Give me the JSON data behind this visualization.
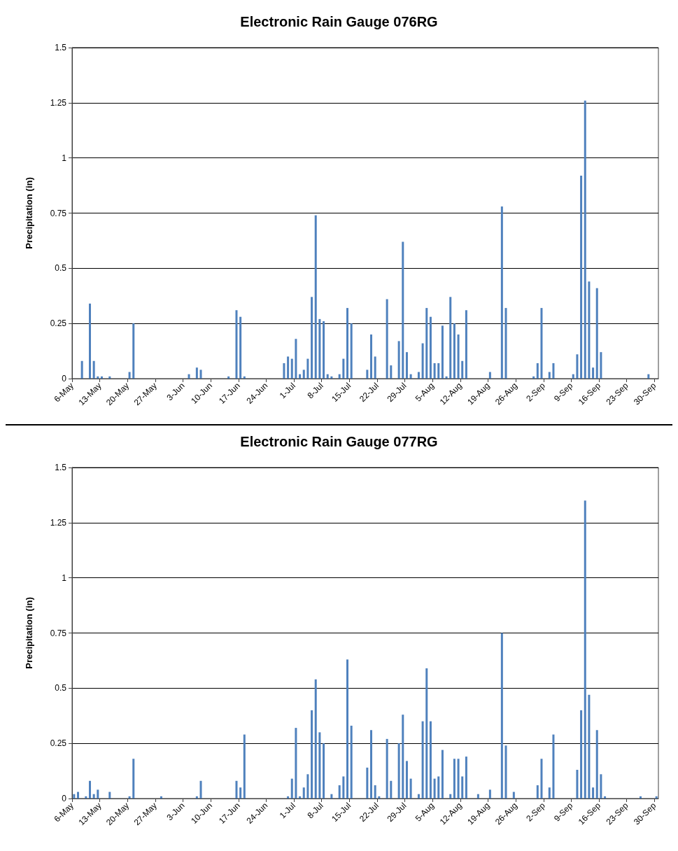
{
  "chart_data": [
    {
      "type": "bar",
      "title": "Electronic Rain Gauge 076RG",
      "ylabel": "Precipitation (in)",
      "x": [
        "--05-08",
        "--05-10",
        "--05-11",
        "--05-12",
        "--05-13",
        "--05-15",
        "--05-20",
        "--05-21",
        "--06-04",
        "--06-06",
        "--06-07",
        "--06-14",
        "--06-16",
        "--06-17",
        "--06-18",
        "--06-28",
        "--06-29",
        "--06-30",
        "--07-01",
        "--07-02",
        "--07-03",
        "--07-04",
        "--07-05",
        "--07-06",
        "--07-07",
        "--07-08",
        "--07-09",
        "--07-10",
        "--07-12",
        "--07-13",
        "--07-14",
        "--07-15",
        "--07-19",
        "--07-20",
        "--07-21",
        "--07-24",
        "--07-25",
        "--07-27",
        "--07-28",
        "--07-29",
        "--07-30",
        "--08-01",
        "--08-02",
        "--08-03",
        "--08-04",
        "--08-05",
        "--08-06",
        "--08-07",
        "--08-08",
        "--08-09",
        "--08-10",
        "--08-11",
        "--08-12",
        "--08-13",
        "--08-19",
        "--08-22",
        "--08-23",
        "--08-30",
        "--08-31",
        "--09-01",
        "--09-03",
        "--09-04",
        "--09-09",
        "--09-10",
        "--09-11",
        "--09-12",
        "--09-13",
        "--09-14",
        "--09-15",
        "--09-16",
        "--09-28"
      ],
      "series": [
        {
          "color": "#4f81bd",
          "values": [
            0.08,
            0.34,
            0.08,
            0.01,
            0.01,
            0.01,
            0.03,
            0.25,
            0.02,
            0.05,
            0.04,
            0.01,
            0.31,
            0.28,
            0.01,
            0.07,
            0.1,
            0.09,
            0.18,
            0.02,
            0.04,
            0.09,
            0.37,
            0.74,
            0.27,
            0.26,
            0.02,
            0.01,
            0.02,
            0.09,
            0.32,
            0.25,
            0.04,
            0.2,
            0.1,
            0.36,
            0.06,
            0.17,
            0.62,
            0.12,
            0.02,
            0.03,
            0.16,
            0.32,
            0.28,
            0.07,
            0.07,
            0.24,
            0.01,
            0.37,
            0.25,
            0.2,
            0.08,
            0.31,
            0.03,
            0.78,
            0.32,
            0.01,
            0.07,
            0.32,
            0.03,
            0.07,
            0.02,
            0.11,
            0.92,
            1.26,
            0.44,
            0.05,
            0.41,
            0.12,
            0.02
          ]
        }
      ],
      "xlim": [
        "--05-06",
        "--10-01"
      ],
      "xticks": [
        {
          "value": "--05-06",
          "label": "6-May"
        },
        {
          "value": "--05-13",
          "label": "13-May"
        },
        {
          "value": "--05-20",
          "label": "20-May"
        },
        {
          "value": "--05-27",
          "label": "27-May"
        },
        {
          "value": "--06-03",
          "label": "3-Jun"
        },
        {
          "value": "--06-10",
          "label": "10-Jun"
        },
        {
          "value": "--06-17",
          "label": "17-Jun"
        },
        {
          "value": "--06-24",
          "label": "24-Jun"
        },
        {
          "value": "--07-01",
          "label": "1-Jul"
        },
        {
          "value": "--07-08",
          "label": "8-Jul"
        },
        {
          "value": "--07-15",
          "label": "15-Jul"
        },
        {
          "value": "--07-22",
          "label": "22-Jul"
        },
        {
          "value": "--07-29",
          "label": "29-Jul"
        },
        {
          "value": "--08-05",
          "label": "5-Aug"
        },
        {
          "value": "--08-12",
          "label": "12-Aug"
        },
        {
          "value": "--08-19",
          "label": "19-Aug"
        },
        {
          "value": "--08-26",
          "label": "26-Aug"
        },
        {
          "value": "--09-02",
          "label": "2-Sep"
        },
        {
          "value": "--09-09",
          "label": "9-Sep"
        },
        {
          "value": "--09-16",
          "label": "16-Sep"
        },
        {
          "value": "--09-23",
          "label": "23-Sep"
        },
        {
          "value": "--09-30",
          "label": "30-Sep"
        }
      ],
      "ylim": [
        0,
        1.5
      ],
      "yticks": [
        0,
        0.25,
        0.5,
        0.75,
        1,
        1.25,
        1.5
      ],
      "grid": "y"
    },
    {
      "type": "bar",
      "title": "Electronic Rain Gauge 077RG",
      "ylabel": "Precipitation (in)",
      "x": [
        "--05-06",
        "--05-07",
        "--05-09",
        "--05-10",
        "--05-11",
        "--05-12",
        "--05-15",
        "--05-20",
        "--05-21",
        "--05-28",
        "--06-06",
        "--06-07",
        "--06-16",
        "--06-17",
        "--06-18",
        "--06-29",
        "--06-30",
        "--07-01",
        "--07-02",
        "--07-03",
        "--07-04",
        "--07-05",
        "--07-06",
        "--07-07",
        "--07-08",
        "--07-10",
        "--07-12",
        "--07-13",
        "--07-14",
        "--07-15",
        "--07-19",
        "--07-20",
        "--07-21",
        "--07-22",
        "--07-24",
        "--07-25",
        "--07-27",
        "--07-28",
        "--07-29",
        "--07-30",
        "--08-01",
        "--08-02",
        "--08-03",
        "--08-04",
        "--08-05",
        "--08-06",
        "--08-07",
        "--08-09",
        "--08-10",
        "--08-11",
        "--08-12",
        "--08-13",
        "--08-16",
        "--08-19",
        "--08-22",
        "--08-23",
        "--08-25",
        "--08-31",
        "--09-01",
        "--09-03",
        "--09-04",
        "--09-10",
        "--09-11",
        "--09-12",
        "--09-13",
        "--09-14",
        "--09-15",
        "--09-16",
        "--09-17",
        "--09-26",
        "--09-30"
      ],
      "series": [
        {
          "color": "#4f81bd",
          "values": [
            0.02,
            0.03,
            0.01,
            0.08,
            0.02,
            0.04,
            0.03,
            0.01,
            0.18,
            0.01,
            0.01,
            0.08,
            0.08,
            0.05,
            0.29,
            0.01,
            0.09,
            0.32,
            0.01,
            0.05,
            0.11,
            0.4,
            0.54,
            0.3,
            0.25,
            0.02,
            0.06,
            0.1,
            0.63,
            0.33,
            0.14,
            0.31,
            0.06,
            0.01,
            0.27,
            0.08,
            0.25,
            0.38,
            0.17,
            0.09,
            0.02,
            0.35,
            0.59,
            0.35,
            0.09,
            0.1,
            0.22,
            0.02,
            0.18,
            0.18,
            0.1,
            0.19,
            0.02,
            0.04,
            0.75,
            0.24,
            0.03,
            0.06,
            0.18,
            0.05,
            0.29,
            0.13,
            0.4,
            1.35,
            0.47,
            0.05,
            0.31,
            0.11,
            0.01,
            0.01,
            0.01
          ]
        }
      ],
      "xlim": [
        "--05-06",
        "--10-01"
      ],
      "xticks": [
        {
          "value": "--05-06",
          "label": "6-May"
        },
        {
          "value": "--05-13",
          "label": "13-May"
        },
        {
          "value": "--05-20",
          "label": "20-May"
        },
        {
          "value": "--05-27",
          "label": "27-May"
        },
        {
          "value": "--06-03",
          "label": "3-Jun"
        },
        {
          "value": "--06-10",
          "label": "10-Jun"
        },
        {
          "value": "--06-17",
          "label": "17-Jun"
        },
        {
          "value": "--06-24",
          "label": "24-Jun"
        },
        {
          "value": "--07-01",
          "label": "1-Jul"
        },
        {
          "value": "--07-08",
          "label": "8-Jul"
        },
        {
          "value": "--07-15",
          "label": "15-Jul"
        },
        {
          "value": "--07-22",
          "label": "22-Jul"
        },
        {
          "value": "--07-29",
          "label": "29-Jul"
        },
        {
          "value": "--08-05",
          "label": "5-Aug"
        },
        {
          "value": "--08-12",
          "label": "12-Aug"
        },
        {
          "value": "--08-19",
          "label": "19-Aug"
        },
        {
          "value": "--08-26",
          "label": "26-Aug"
        },
        {
          "value": "--09-02",
          "label": "2-Sep"
        },
        {
          "value": "--09-09",
          "label": "9-Sep"
        },
        {
          "value": "--09-16",
          "label": "16-Sep"
        },
        {
          "value": "--09-23",
          "label": "23-Sep"
        },
        {
          "value": "--09-30",
          "label": "30-Sep"
        }
      ],
      "ylim": [
        0,
        1.5
      ],
      "yticks": [
        0,
        0.25,
        0.5,
        0.75,
        1,
        1.25,
        1.5
      ],
      "grid": "y"
    }
  ]
}
